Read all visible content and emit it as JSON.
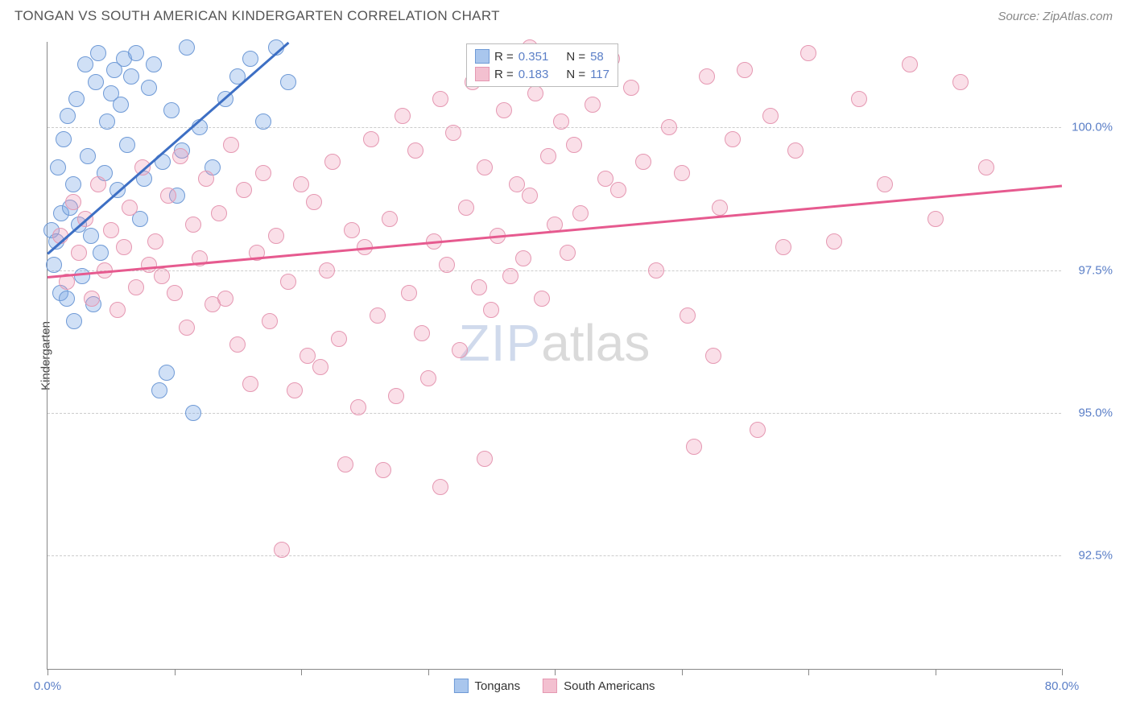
{
  "header": {
    "title": "TONGAN VS SOUTH AMERICAN KINDERGARTEN CORRELATION CHART",
    "source": "Source: ZipAtlas.com"
  },
  "chart": {
    "type": "scatter",
    "ylabel": "Kindergarten",
    "xlim": [
      0,
      80
    ],
    "ylim": [
      90.5,
      101.5
    ],
    "xtick_positions": [
      0,
      10,
      20,
      30,
      40,
      50,
      60,
      70,
      80
    ],
    "xtick_labels": {
      "0": "0.0%",
      "80": "80.0%"
    },
    "ytick_positions": [
      92.5,
      95.0,
      97.5,
      100.0
    ],
    "ytick_labels": [
      "92.5%",
      "95.0%",
      "97.5%",
      "100.0%"
    ],
    "background_color": "#ffffff",
    "grid_color": "#cccccc",
    "axis_color": "#888888",
    "tick_label_color": "#5b7fc7",
    "marker_radius": 10,
    "marker_border_width": 1.5,
    "series": [
      {
        "name": "Tongans",
        "fill_color": "rgba(120,165,230,0.35)",
        "stroke_color": "#6f9ad6",
        "legend_fill": "#a9c6ed",
        "legend_stroke": "#6f9ad6",
        "R": "0.351",
        "N": "58",
        "trend": {
          "x1": 0,
          "y1": 97.8,
          "x2": 19,
          "y2": 101.5,
          "color": "#3d6fc4"
        },
        "points": [
          [
            0.3,
            98.2
          ],
          [
            0.5,
            97.6
          ],
          [
            0.7,
            98.0
          ],
          [
            0.8,
            99.3
          ],
          [
            1.0,
            97.1
          ],
          [
            1.1,
            98.5
          ],
          [
            1.3,
            99.8
          ],
          [
            1.5,
            97.0
          ],
          [
            1.6,
            100.2
          ],
          [
            1.8,
            98.6
          ],
          [
            2.0,
            99.0
          ],
          [
            2.1,
            96.6
          ],
          [
            2.3,
            100.5
          ],
          [
            2.5,
            98.3
          ],
          [
            2.7,
            97.4
          ],
          [
            3.0,
            101.1
          ],
          [
            3.2,
            99.5
          ],
          [
            3.4,
            98.1
          ],
          [
            3.6,
            96.9
          ],
          [
            3.8,
            100.8
          ],
          [
            4.0,
            101.3
          ],
          [
            4.2,
            97.8
          ],
          [
            4.5,
            99.2
          ],
          [
            4.7,
            100.1
          ],
          [
            5.0,
            100.6
          ],
          [
            5.3,
            101.0
          ],
          [
            5.5,
            98.9
          ],
          [
            5.8,
            100.4
          ],
          [
            6.0,
            101.2
          ],
          [
            6.3,
            99.7
          ],
          [
            6.6,
            100.9
          ],
          [
            7.0,
            101.3
          ],
          [
            7.3,
            98.4
          ],
          [
            7.6,
            99.1
          ],
          [
            8.0,
            100.7
          ],
          [
            8.4,
            101.1
          ],
          [
            8.8,
            95.4
          ],
          [
            9.1,
            99.4
          ],
          [
            9.4,
            95.7
          ],
          [
            9.8,
            100.3
          ],
          [
            10.2,
            98.8
          ],
          [
            10.6,
            99.6
          ],
          [
            11.0,
            101.4
          ],
          [
            11.5,
            95.0
          ],
          [
            12.0,
            100.0
          ],
          [
            13.0,
            99.3
          ],
          [
            14.0,
            100.5
          ],
          [
            15.0,
            100.9
          ],
          [
            16.0,
            101.2
          ],
          [
            17.0,
            100.1
          ],
          [
            18.0,
            101.4
          ],
          [
            19.0,
            100.8
          ]
        ]
      },
      {
        "name": "South Americans",
        "fill_color": "rgba(240,150,180,0.30)",
        "stroke_color": "#e598b2",
        "legend_fill": "#f3c0d0",
        "legend_stroke": "#e598b2",
        "R": "0.183",
        "N": "117",
        "trend": {
          "x1": 0,
          "y1": 97.4,
          "x2": 80,
          "y2": 99.0,
          "color": "#e65a8f"
        },
        "points": [
          [
            1.0,
            98.1
          ],
          [
            1.5,
            97.3
          ],
          [
            2.0,
            98.7
          ],
          [
            2.5,
            97.8
          ],
          [
            3.0,
            98.4
          ],
          [
            3.5,
            97.0
          ],
          [
            4.0,
            99.0
          ],
          [
            4.5,
            97.5
          ],
          [
            5.0,
            98.2
          ],
          [
            5.5,
            96.8
          ],
          [
            6.0,
            97.9
          ],
          [
            6.5,
            98.6
          ],
          [
            7.0,
            97.2
          ],
          [
            7.5,
            99.3
          ],
          [
            8.0,
            97.6
          ],
          [
            8.5,
            98.0
          ],
          [
            9.0,
            97.4
          ],
          [
            9.5,
            98.8
          ],
          [
            10.0,
            97.1
          ],
          [
            10.5,
            99.5
          ],
          [
            11.0,
            96.5
          ],
          [
            11.5,
            98.3
          ],
          [
            12.0,
            97.7
          ],
          [
            12.5,
            99.1
          ],
          [
            13.0,
            96.9
          ],
          [
            13.5,
            98.5
          ],
          [
            14.0,
            97.0
          ],
          [
            14.5,
            99.7
          ],
          [
            15.0,
            96.2
          ],
          [
            15.5,
            98.9
          ],
          [
            16.0,
            95.5
          ],
          [
            16.5,
            97.8
          ],
          [
            17.0,
            99.2
          ],
          [
            17.5,
            96.6
          ],
          [
            18.0,
            98.1
          ],
          [
            18.5,
            92.6
          ],
          [
            19.0,
            97.3
          ],
          [
            19.5,
            95.4
          ],
          [
            20.0,
            99.0
          ],
          [
            20.5,
            96.0
          ],
          [
            21.0,
            98.7
          ],
          [
            21.5,
            95.8
          ],
          [
            22.0,
            97.5
          ],
          [
            22.5,
            99.4
          ],
          [
            23.0,
            96.3
          ],
          [
            23.5,
            94.1
          ],
          [
            24.0,
            98.2
          ],
          [
            24.5,
            95.1
          ],
          [
            25.0,
            97.9
          ],
          [
            25.5,
            99.8
          ],
          [
            26.0,
            96.7
          ],
          [
            26.5,
            94.0
          ],
          [
            27.0,
            98.4
          ],
          [
            27.5,
            95.3
          ],
          [
            28.0,
            100.2
          ],
          [
            28.5,
            97.1
          ],
          [
            29.0,
            99.6
          ],
          [
            29.5,
            96.4
          ],
          [
            30.0,
            95.6
          ],
          [
            30.5,
            98.0
          ],
          [
            31.0,
            100.5
          ],
          [
            31.5,
            97.6
          ],
          [
            32.0,
            99.9
          ],
          [
            32.5,
            96.1
          ],
          [
            33.0,
            98.6
          ],
          [
            33.5,
            100.8
          ],
          [
            34.0,
            97.2
          ],
          [
            34.5,
            99.3
          ],
          [
            35.0,
            96.8
          ],
          [
            35.5,
            98.1
          ],
          [
            36.0,
            100.3
          ],
          [
            36.5,
            97.4
          ],
          [
            37.0,
            99.0
          ],
          [
            37.5,
            97.7
          ],
          [
            38.0,
            98.8
          ],
          [
            38.5,
            100.6
          ],
          [
            39.0,
            97.0
          ],
          [
            39.5,
            99.5
          ],
          [
            40.0,
            98.3
          ],
          [
            40.5,
            100.1
          ],
          [
            41.0,
            97.8
          ],
          [
            41.5,
            99.7
          ],
          [
            42.0,
            98.5
          ],
          [
            43.0,
            100.4
          ],
          [
            44.0,
            99.1
          ],
          [
            45.0,
            98.9
          ],
          [
            46.0,
            100.7
          ],
          [
            47.0,
            99.4
          ],
          [
            48.0,
            97.5
          ],
          [
            49.0,
            100.0
          ],
          [
            50.0,
            99.2
          ],
          [
            51.0,
            94.4
          ],
          [
            52.0,
            100.9
          ],
          [
            53.0,
            98.6
          ],
          [
            54.0,
            99.8
          ],
          [
            55.0,
            101.0
          ],
          [
            56.0,
            94.7
          ],
          [
            57.0,
            100.2
          ],
          [
            58.0,
            97.9
          ],
          [
            59.0,
            99.6
          ],
          [
            60.0,
            101.3
          ],
          [
            62.0,
            98.0
          ],
          [
            64.0,
            100.5
          ],
          [
            66.0,
            99.0
          ],
          [
            68.0,
            101.1
          ],
          [
            70.0,
            98.4
          ],
          [
            72.0,
            100.8
          ],
          [
            74.0,
            99.3
          ],
          [
            50.5,
            96.7
          ],
          [
            52.5,
            96.0
          ],
          [
            44.5,
            101.2
          ],
          [
            38.0,
            101.4
          ],
          [
            31.0,
            93.7
          ],
          [
            34.5,
            94.2
          ]
        ]
      }
    ],
    "watermark": {
      "zip": "ZIP",
      "atlas": "atlas"
    },
    "legend_box": {
      "r_label": "R =",
      "n_label": "N ="
    },
    "bottom_legend": [
      "Tongans",
      "South Americans"
    ]
  }
}
